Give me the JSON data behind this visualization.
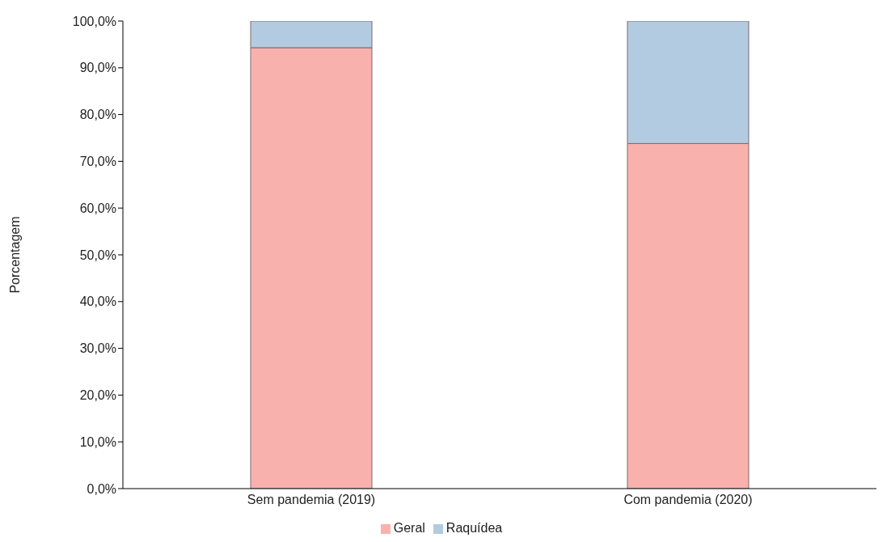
{
  "chart_data": {
    "type": "bar",
    "stacked": true,
    "ylabel": "Porcentagem",
    "categories": [
      "Sem pandemia (2019)",
      "Com pandemia (2020)"
    ],
    "series": [
      {
        "name": "Geral",
        "color": "#f9b1ad",
        "values": [
          94.3,
          73.8
        ]
      },
      {
        "name": "Raquídea",
        "color": "#b3cbe0",
        "values": [
          5.7,
          26.2
        ]
      }
    ],
    "ylim": [
      0,
      100
    ],
    "yticks": [
      {
        "value": 0,
        "label": "0,0%"
      },
      {
        "value": 10,
        "label": "10,0%"
      },
      {
        "value": 20,
        "label": "20,0%"
      },
      {
        "value": 30,
        "label": "30,0%"
      },
      {
        "value": 40,
        "label": "40,0%"
      },
      {
        "value": 50,
        "label": "50,0%"
      },
      {
        "value": 60,
        "label": "60,0%"
      },
      {
        "value": 70,
        "label": "70,0%"
      },
      {
        "value": 80,
        "label": "80,0%"
      },
      {
        "value": 90,
        "label": "90,0%"
      },
      {
        "value": 100,
        "label": "100,0%"
      }
    ],
    "grid": false,
    "legend": "bottom"
  }
}
